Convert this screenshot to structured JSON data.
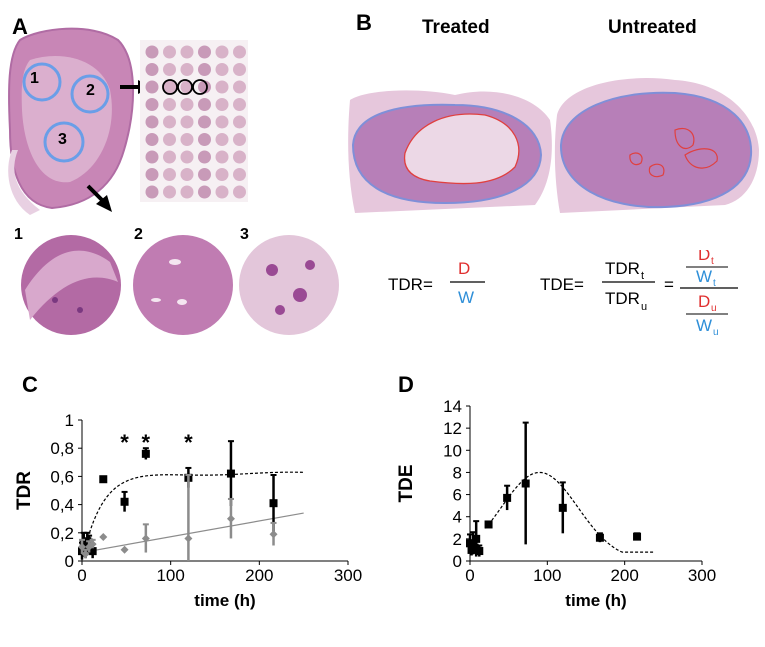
{
  "panels": {
    "a": {
      "letter": "A",
      "region_labels": [
        "1",
        "2",
        "3"
      ],
      "zoom_labels": [
        "1",
        "2",
        "3"
      ]
    },
    "b": {
      "letter": "B",
      "treated_label": "Treated",
      "untreated_label": "Untreated"
    },
    "c": {
      "letter": "C"
    },
    "d": {
      "letter": "D"
    }
  },
  "equations": {
    "tdr_lhs": "TDR=",
    "tdr_num": "D",
    "tdr_den": "W",
    "tde_lhs": "TDE=",
    "tde_num": "TDR",
    "tde_num_sub": "t",
    "tde_den": "TDR",
    "tde_den_sub": "u",
    "equals": "=",
    "d_t": "D",
    "d_t_sub": "t",
    "w_t": "W",
    "w_t_sub": "t",
    "d_u": "D",
    "d_u_sub": "u",
    "w_u": "W",
    "w_u_sub": "u",
    "colors": {
      "d": "#e03030",
      "w": "#2f8fd8"
    }
  },
  "chart_data": [
    {
      "type": "scatter",
      "panel": "C",
      "xlabel": "time (h)",
      "ylabel": "TDR",
      "xlim": [
        0,
        300
      ],
      "ylim": [
        0,
        1
      ],
      "x_ticks": [
        0,
        100,
        200,
        300
      ],
      "y_ticks": [
        "0",
        "0,2",
        "0,4",
        "0,6",
        "0,8",
        "1"
      ],
      "y_tick_values": [
        0,
        0.2,
        0.4,
        0.6,
        0.8,
        1.0
      ],
      "grid": false,
      "significance_marker": "*",
      "significance_x": [
        48,
        72,
        120
      ],
      "series": [
        {
          "color": "#000000",
          "marker": "square",
          "points": [
            {
              "x": 0,
              "y": 0.07,
              "err": 0.06
            },
            {
              "x": 2,
              "y": 0.12,
              "err": 0.08
            },
            {
              "x": 4,
              "y": 0.08,
              "err": 0.06
            },
            {
              "x": 6,
              "y": 0.14,
              "err": 0.06
            },
            {
              "x": 8,
              "y": 0.13,
              "err": 0.05
            },
            {
              "x": 12,
              "y": 0.07,
              "err": 0.05
            },
            {
              "x": 24,
              "y": 0.58,
              "err": 0
            },
            {
              "x": 48,
              "y": 0.42,
              "err": 0.07
            },
            {
              "x": 72,
              "y": 0.76,
              "err": 0.04
            },
            {
              "x": 120,
              "y": 0.59,
              "err": 0.07
            },
            {
              "x": 168,
              "y": 0.62,
              "err": 0.23
            },
            {
              "x": 216,
              "y": 0.41,
              "err": 0.2
            }
          ],
          "trend": "saturating"
        },
        {
          "color": "#8c8c8c",
          "marker": "diamond",
          "points": [
            {
              "x": 0,
              "y": 0.1,
              "err": 0.05
            },
            {
              "x": 4,
              "y": 0.05,
              "err": 0.03
            },
            {
              "x": 8,
              "y": 0.1,
              "err": 0.04
            },
            {
              "x": 12,
              "y": 0.12,
              "err": 0.03
            },
            {
              "x": 24,
              "y": 0.17,
              "err": 0
            },
            {
              "x": 48,
              "y": 0.08,
              "err": 0
            },
            {
              "x": 72,
              "y": 0.16,
              "err": 0.1
            },
            {
              "x": 120,
              "y": 0.16,
              "err": 0.45
            },
            {
              "x": 168,
              "y": 0.3,
              "err": 0.14
            },
            {
              "x": 216,
              "y": 0.19,
              "err": 0.08
            }
          ],
          "trend": "linear",
          "trend_range": [
            0,
            250
          ],
          "trend_y": [
            0.06,
            0.34
          ]
        }
      ]
    },
    {
      "type": "scatter",
      "panel": "D",
      "xlabel": "time (h)",
      "ylabel": "TDE",
      "xlim": [
        0,
        300
      ],
      "ylim": [
        0,
        14
      ],
      "x_ticks": [
        0,
        100,
        200,
        300
      ],
      "y_ticks": [
        "0",
        "2",
        "4",
        "6",
        "8",
        "10",
        "12",
        "14"
      ],
      "y_tick_values": [
        0,
        2,
        4,
        6,
        8,
        10,
        12,
        14
      ],
      "grid": false,
      "series": [
        {
          "color": "#000000",
          "marker": "square",
          "points": [
            {
              "x": 0,
              "y": 1.6,
              "err": 0.8
            },
            {
              "x": 2,
              "y": 1.0,
              "err": 0.5
            },
            {
              "x": 4,
              "y": 1.6,
              "err": 1.0
            },
            {
              "x": 6,
              "y": 1.2,
              "err": 0.5
            },
            {
              "x": 8,
              "y": 2.0,
              "err": 1.6
            },
            {
              "x": 12,
              "y": 0.9,
              "err": 0.5
            },
            {
              "x": 24,
              "y": 3.3,
              "err": 0
            },
            {
              "x": 48,
              "y": 5.7,
              "err": 1.1
            },
            {
              "x": 72,
              "y": 7.0,
              "err": 5.5
            },
            {
              "x": 120,
              "y": 4.8,
              "err": 2.3
            },
            {
              "x": 168,
              "y": 2.1,
              "err": 0.4
            },
            {
              "x": 216,
              "y": 2.2,
              "err": 0.3
            }
          ],
          "trend": "peak",
          "trend_range": [
            20,
            240
          ],
          "trend_peak": [
            90,
            8.0
          ]
        }
      ]
    }
  ]
}
